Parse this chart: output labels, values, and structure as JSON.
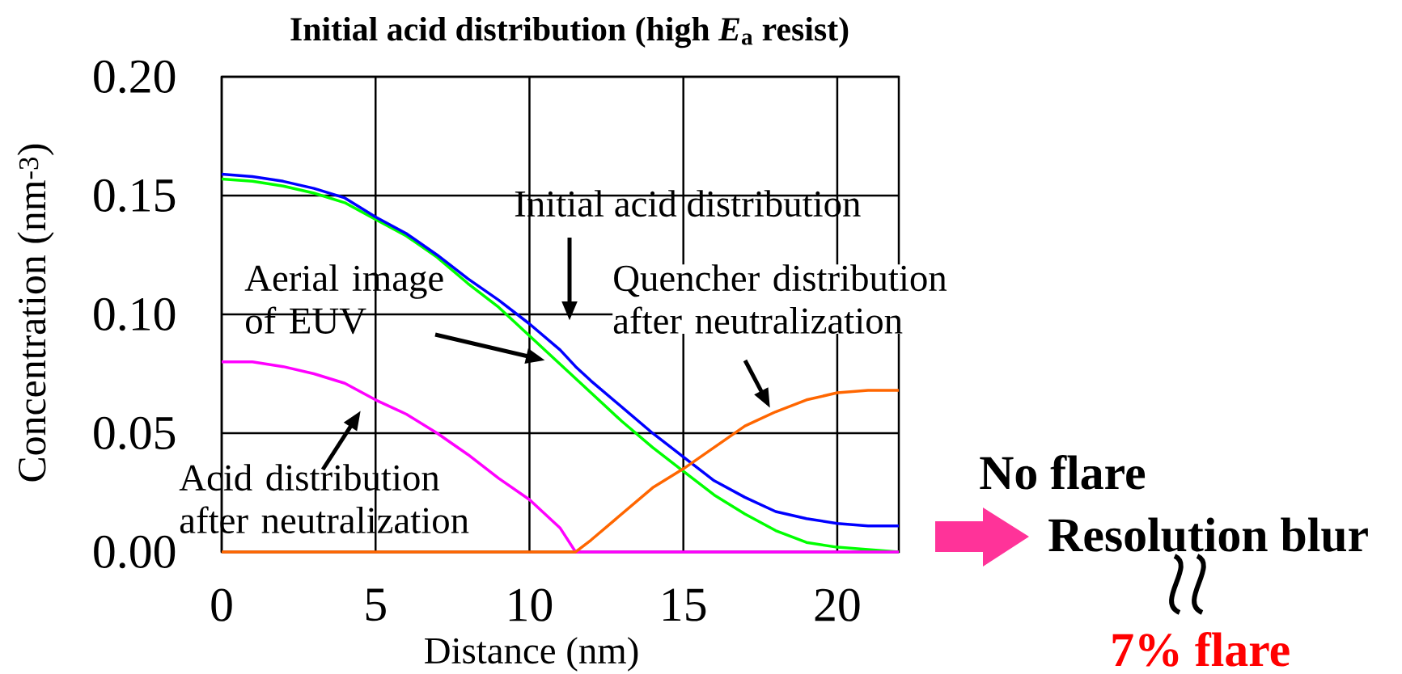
{
  "chart_data": {
    "type": "line",
    "title": "Initial acid distribution (high *E*$_{a}$ resist)",
    "xlabel": "Distance (nm)",
    "ylabel": "Concentration (nm$^{-3}$)",
    "x": [
      0,
      1,
      2,
      3,
      4,
      5,
      6,
      7,
      8,
      9,
      10,
      11,
      11.5,
      12,
      13,
      14,
      15,
      16,
      17,
      18,
      19,
      20,
      21,
      22
    ],
    "series": [
      {
        "name": "Aerial image of EUV",
        "color": "#00ff00",
        "values": [
          0.157,
          0.156,
          0.154,
          0.151,
          0.147,
          0.14,
          0.133,
          0.124,
          0.113,
          0.103,
          0.091,
          0.079,
          0.073,
          0.067,
          0.055,
          0.044,
          0.034,
          0.024,
          0.016,
          0.009,
          0.004,
          0.002,
          0.001,
          0.0
        ]
      },
      {
        "name": "Initial acid distribution",
        "color": "#0000ff",
        "values": [
          0.159,
          0.158,
          0.156,
          0.153,
          0.149,
          0.141,
          0.134,
          0.125,
          0.115,
          0.106,
          0.096,
          0.085,
          0.078,
          0.072,
          0.061,
          0.05,
          0.04,
          0.03,
          0.023,
          0.017,
          0.014,
          0.012,
          0.011,
          0.011
        ]
      },
      {
        "name": "Acid distribution after neutralization",
        "color": "#ff00ff",
        "values": [
          0.08,
          0.08,
          0.078,
          0.075,
          0.071,
          0.064,
          0.058,
          0.05,
          0.041,
          0.031,
          0.022,
          0.01,
          0.0,
          0,
          0,
          0,
          0,
          0,
          0,
          0,
          0,
          0,
          0,
          0
        ]
      },
      {
        "name": "Quencher distribution after neutralization",
        "color": "#ff6600",
        "values": [
          0,
          0,
          0,
          0,
          0,
          0,
          0,
          0,
          0,
          0,
          0,
          0,
          0.0,
          0.005,
          0.016,
          0.027,
          0.035,
          0.044,
          0.053,
          0.059,
          0.064,
          0.067,
          0.068,
          0.068
        ]
      }
    ],
    "xlim": [
      0,
      22
    ],
    "xticks": [
      0,
      5,
      10,
      15,
      20
    ],
    "ylim": [
      0,
      0.2
    ],
    "yticks": [
      {
        "value": 0,
        "label": "0.00"
      },
      {
        "value": 0.05,
        "label": "0.05"
      },
      {
        "value": 0.1,
        "label": "0.10"
      },
      {
        "value": 0.15,
        "label": "0.15"
      },
      {
        "value": 0.2,
        "label": "0.20"
      }
    ],
    "grid": true,
    "line_style": "solid",
    "annotations": [
      "No flare",
      "Resolution blur",
      "7% flare"
    ]
  }
}
